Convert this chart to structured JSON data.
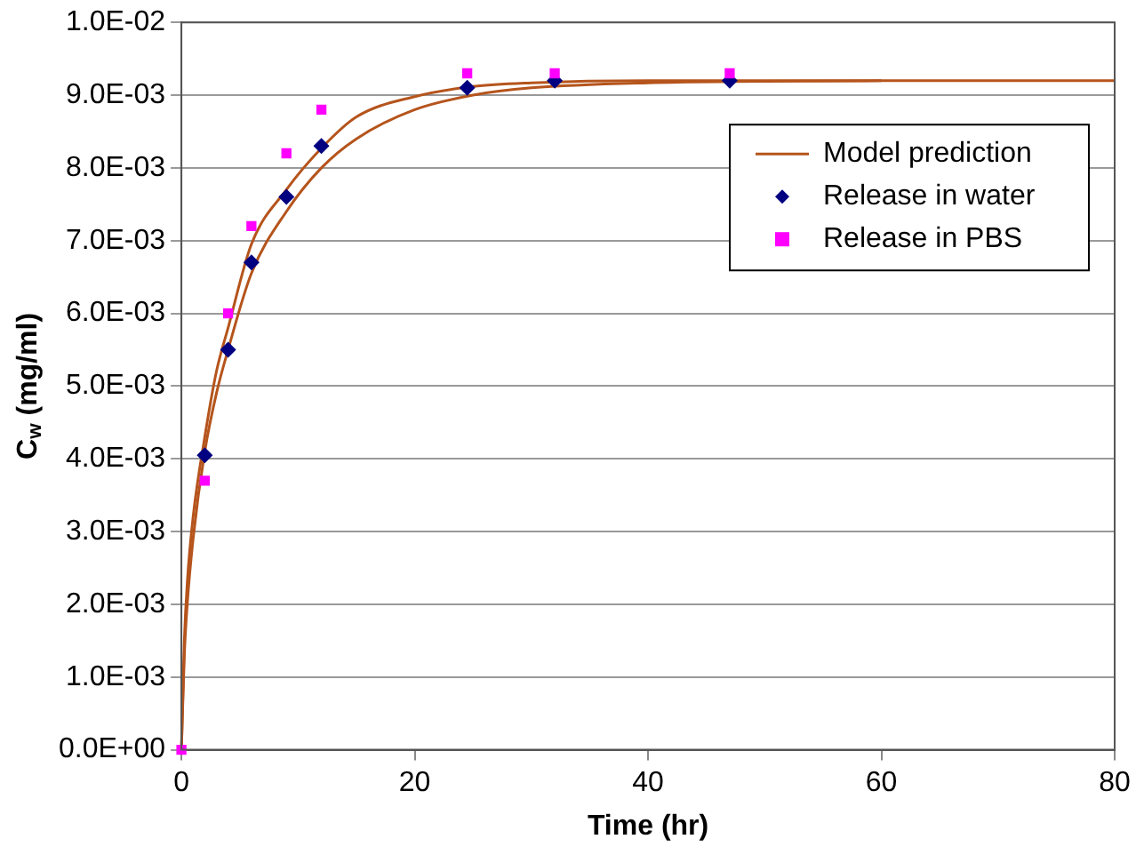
{
  "chart_data": {
    "type": "line",
    "xlabel": "Time (hr)",
    "ylabel": "C$_{w}$ (mg/ml)",
    "xlim": [
      0,
      80
    ],
    "xticks": [
      0,
      20,
      40,
      60,
      80
    ],
    "ylim": [
      0,
      0.01
    ],
    "yticks": [
      {
        "value": 0,
        "label": "0.0E+00"
      },
      {
        "value": 0.001,
        "label": "1.0E-03"
      },
      {
        "value": 0.002,
        "label": "2.0E-03"
      },
      {
        "value": 0.003,
        "label": "3.0E-03"
      },
      {
        "value": 0.004,
        "label": "4.0E-03"
      },
      {
        "value": 0.005,
        "label": "5.0E-03"
      },
      {
        "value": 0.006,
        "label": "6.0E-03"
      },
      {
        "value": 0.007,
        "label": "7.0E-03"
      },
      {
        "value": 0.008,
        "label": "8.0E-03"
      },
      {
        "value": 0.009,
        "label": "9.0E-03"
      },
      {
        "value": 0.01,
        "label": "1.0E-02"
      }
    ],
    "grid": "y",
    "legend": "top right",
    "series": [
      {
        "name": "Model prediction",
        "marker": "none",
        "line_style": "solid",
        "color": "#b5541c",
        "x": [
          0,
          0.25,
          0.5,
          1,
          2,
          3,
          4,
          6,
          9,
          12,
          15,
          20,
          25,
          30,
          40,
          80
        ],
        "values": [
          0,
          0.0015,
          0.0023,
          0.0032,
          0.0043,
          0.0052,
          0.0058,
          0.00695,
          0.0077,
          0.00827,
          0.0087,
          0.00898,
          0.00912,
          0.00917,
          0.0092,
          0.0092
        ]
      },
      {
        "marker": "none",
        "line_style": "solid",
        "color": "#b5541c",
        "x": [
          0,
          0.25,
          0.5,
          1,
          2,
          3,
          4,
          6,
          9,
          12,
          15,
          20,
          25,
          30,
          40,
          60
        ],
        "values": [
          0,
          0.0013,
          0.002,
          0.0029,
          0.0041,
          0.0049,
          0.0055,
          0.00655,
          0.0074,
          0.008,
          0.0084,
          0.0088,
          0.009,
          0.0091,
          0.00917,
          0.0092
        ]
      },
      {
        "name": "Release in water",
        "type": "scatter",
        "marker": "diamond",
        "color": "#000080",
        "x": [
          2,
          4,
          6,
          9,
          12,
          24.5,
          32,
          47
        ],
        "values": [
          0.00405,
          0.0055,
          0.0067,
          0.0076,
          0.0083,
          0.0091,
          0.0092,
          0.0092
        ]
      },
      {
        "name": "Release in PBS",
        "type": "scatter",
        "marker": "square",
        "color": "#ff00ff",
        "x": [
          0,
          2,
          4,
          6,
          9,
          12,
          24.5,
          32,
          47
        ],
        "values": [
          0,
          0.0037,
          0.006,
          0.0072,
          0.0082,
          0.0088,
          0.0093,
          0.0093,
          0.0093
        ]
      }
    ]
  }
}
